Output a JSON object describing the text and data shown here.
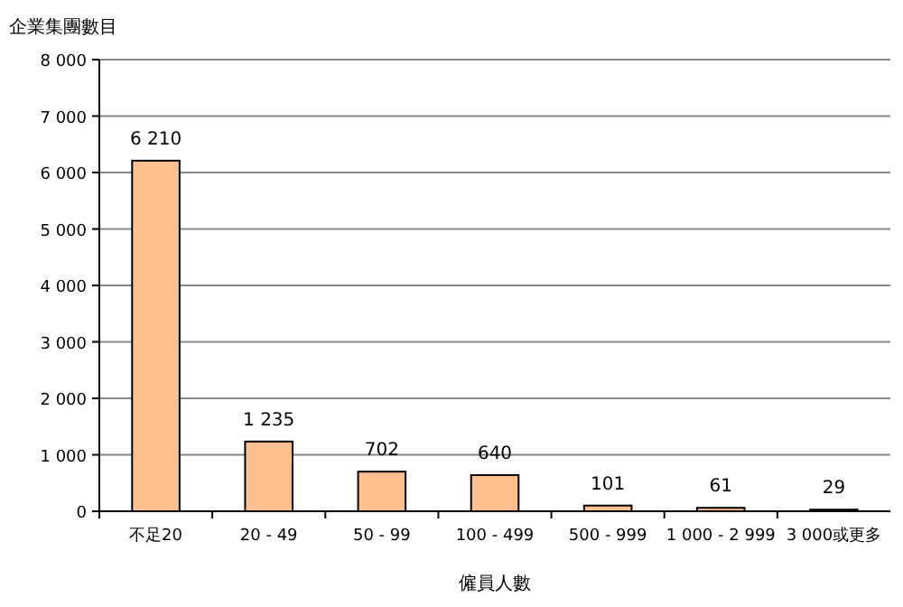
{
  "chart_data": {
    "type": "bar",
    "ylabel": "企業集團數目",
    "xlabel": "僱員人數",
    "categories": [
      "不足20",
      "20 - 49",
      "50 - 99",
      "100 - 499",
      "500 - 999",
      "1 000 - 2 999",
      "3 000或更多"
    ],
    "values": [
      6210,
      1235,
      702,
      640,
      101,
      61,
      29
    ],
    "value_labels": [
      "6 210",
      "1 235",
      "702",
      "640",
      "101",
      "61",
      "29"
    ],
    "color": "#ffbf8f",
    "ylim": [
      0,
      8000
    ],
    "yticks": [
      0,
      {
        "value": 1000,
        "label": "1 000"
      },
      {
        "value": 2000,
        "label": "2 000"
      },
      {
        "value": 3000,
        "label": "3 000"
      },
      {
        "value": 4000,
        "label": "4 000"
      },
      {
        "value": 5000,
        "label": "5 000"
      },
      {
        "value": 6000,
        "label": "6 000"
      },
      {
        "value": 7000,
        "label": "7 000"
      },
      {
        "value": 8000,
        "label": "8 000"
      }
    ],
    "grid": "y"
  }
}
